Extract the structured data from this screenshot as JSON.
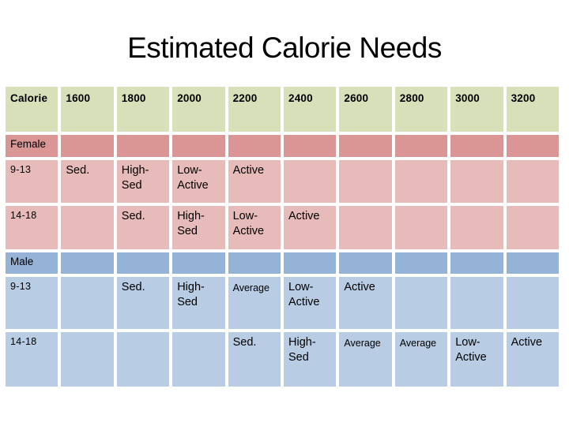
{
  "title": "Estimated Calorie Needs",
  "table": {
    "header_label": "Calorie",
    "calorie_levels": [
      "1600",
      "1800",
      "2000",
      "2200",
      "2400",
      "2600",
      "2800",
      "3000",
      "3200"
    ],
    "sections": [
      {
        "label": "Female",
        "rows": [
          {
            "age": "9-13",
            "cells": [
              "Sed.",
              "High-Sed",
              "Low-Active",
              "Active",
              "",
              "",
              "",
              "",
              ""
            ]
          },
          {
            "age": "14-18",
            "cells": [
              "",
              "Sed.",
              "High-Sed",
              "Low-Active",
              "Active",
              "",
              "",
              "",
              ""
            ]
          }
        ]
      },
      {
        "label": "Male",
        "rows": [
          {
            "age": "9-13",
            "cells": [
              "",
              "Sed.",
              "High-Sed",
              "Average",
              "Low-Active",
              "Active",
              "",
              "",
              ""
            ]
          },
          {
            "age": "14-18",
            "cells": [
              "",
              "",
              "",
              "Sed.",
              "High-Sed",
              "Average",
              "Average",
              "Low-Active",
              "Active"
            ]
          }
        ]
      }
    ]
  },
  "colors": {
    "page_bg": "#FFFFFF",
    "text": "#000000",
    "header_bg": "#D7E0B8",
    "female_header_bg": "#D99694",
    "female_row_bg": "#E7BBB9",
    "male_header_bg": "#95B3D7",
    "male_row_bg": "#B8CCE4"
  }
}
